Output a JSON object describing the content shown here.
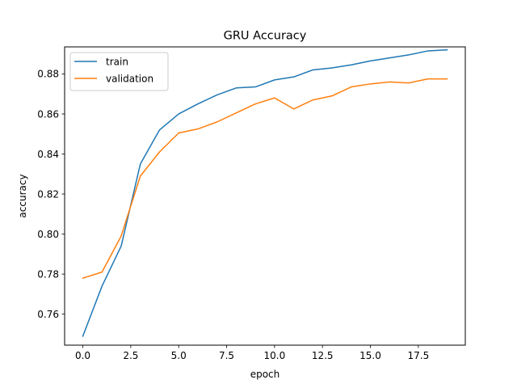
{
  "chart_data": {
    "type": "line",
    "title": "GRU Accuracy",
    "xlabel": "epoch",
    "ylabel": "accuracy",
    "xlim": [
      -0.95,
      19.95
    ],
    "ylim": [
      0.7445,
      0.8935
    ],
    "grid": false,
    "legend_position": "top-left",
    "x": [
      0,
      1,
      2,
      3,
      4,
      5,
      6,
      7,
      8,
      9,
      10,
      11,
      12,
      13,
      14,
      15,
      16,
      17,
      18,
      19
    ],
    "xticks": [
      0.0,
      2.5,
      5.0,
      7.5,
      10.0,
      12.5,
      15.0,
      17.5
    ],
    "xtick_labels": [
      "0.0",
      "2.5",
      "5.0",
      "7.5",
      "10.0",
      "12.5",
      "15.0",
      "17.5"
    ],
    "yticks": [
      0.76,
      0.78,
      0.8,
      0.82,
      0.84,
      0.86,
      0.88
    ],
    "ytick_labels": [
      "0.76",
      "0.78",
      "0.80",
      "0.82",
      "0.84",
      "0.86",
      "0.88"
    ],
    "series": [
      {
        "name": "train",
        "color": "#1f77b4",
        "values": [
          0.749,
          0.774,
          0.794,
          0.835,
          0.852,
          0.86,
          0.865,
          0.8695,
          0.873,
          0.8735,
          0.877,
          0.8785,
          0.882,
          0.883,
          0.8845,
          0.8865,
          0.888,
          0.8895,
          0.8915,
          0.892
        ]
      },
      {
        "name": "validation",
        "color": "#ff7f0e",
        "values": [
          0.778,
          0.781,
          0.799,
          0.829,
          0.841,
          0.8505,
          0.8525,
          0.856,
          0.8605,
          0.865,
          0.868,
          0.8625,
          0.867,
          0.869,
          0.8735,
          0.875,
          0.876,
          0.8755,
          0.8775,
          0.8775
        ]
      }
    ]
  }
}
